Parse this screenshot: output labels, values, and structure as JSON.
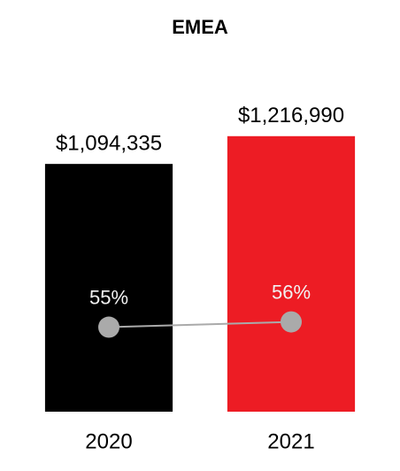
{
  "chart_data": {
    "type": "bar",
    "title": "EMEA",
    "categories": [
      "2020",
      "2021"
    ],
    "series": [
      {
        "type": "bar",
        "colors": [
          "#000000",
          "#ed1c24"
        ],
        "values": [
          1094335,
          1216990
        ],
        "value_labels": [
          "$1,094,335",
          "$1,216,990"
        ]
      },
      {
        "type": "line",
        "axis": "y2",
        "color": "#aaaaaa",
        "values": [
          55,
          56
        ],
        "value_labels": [
          "55%",
          "56%"
        ]
      }
    ],
    "ylim": [
      0,
      1400000
    ],
    "y2lim": [
      39,
      99
    ]
  }
}
